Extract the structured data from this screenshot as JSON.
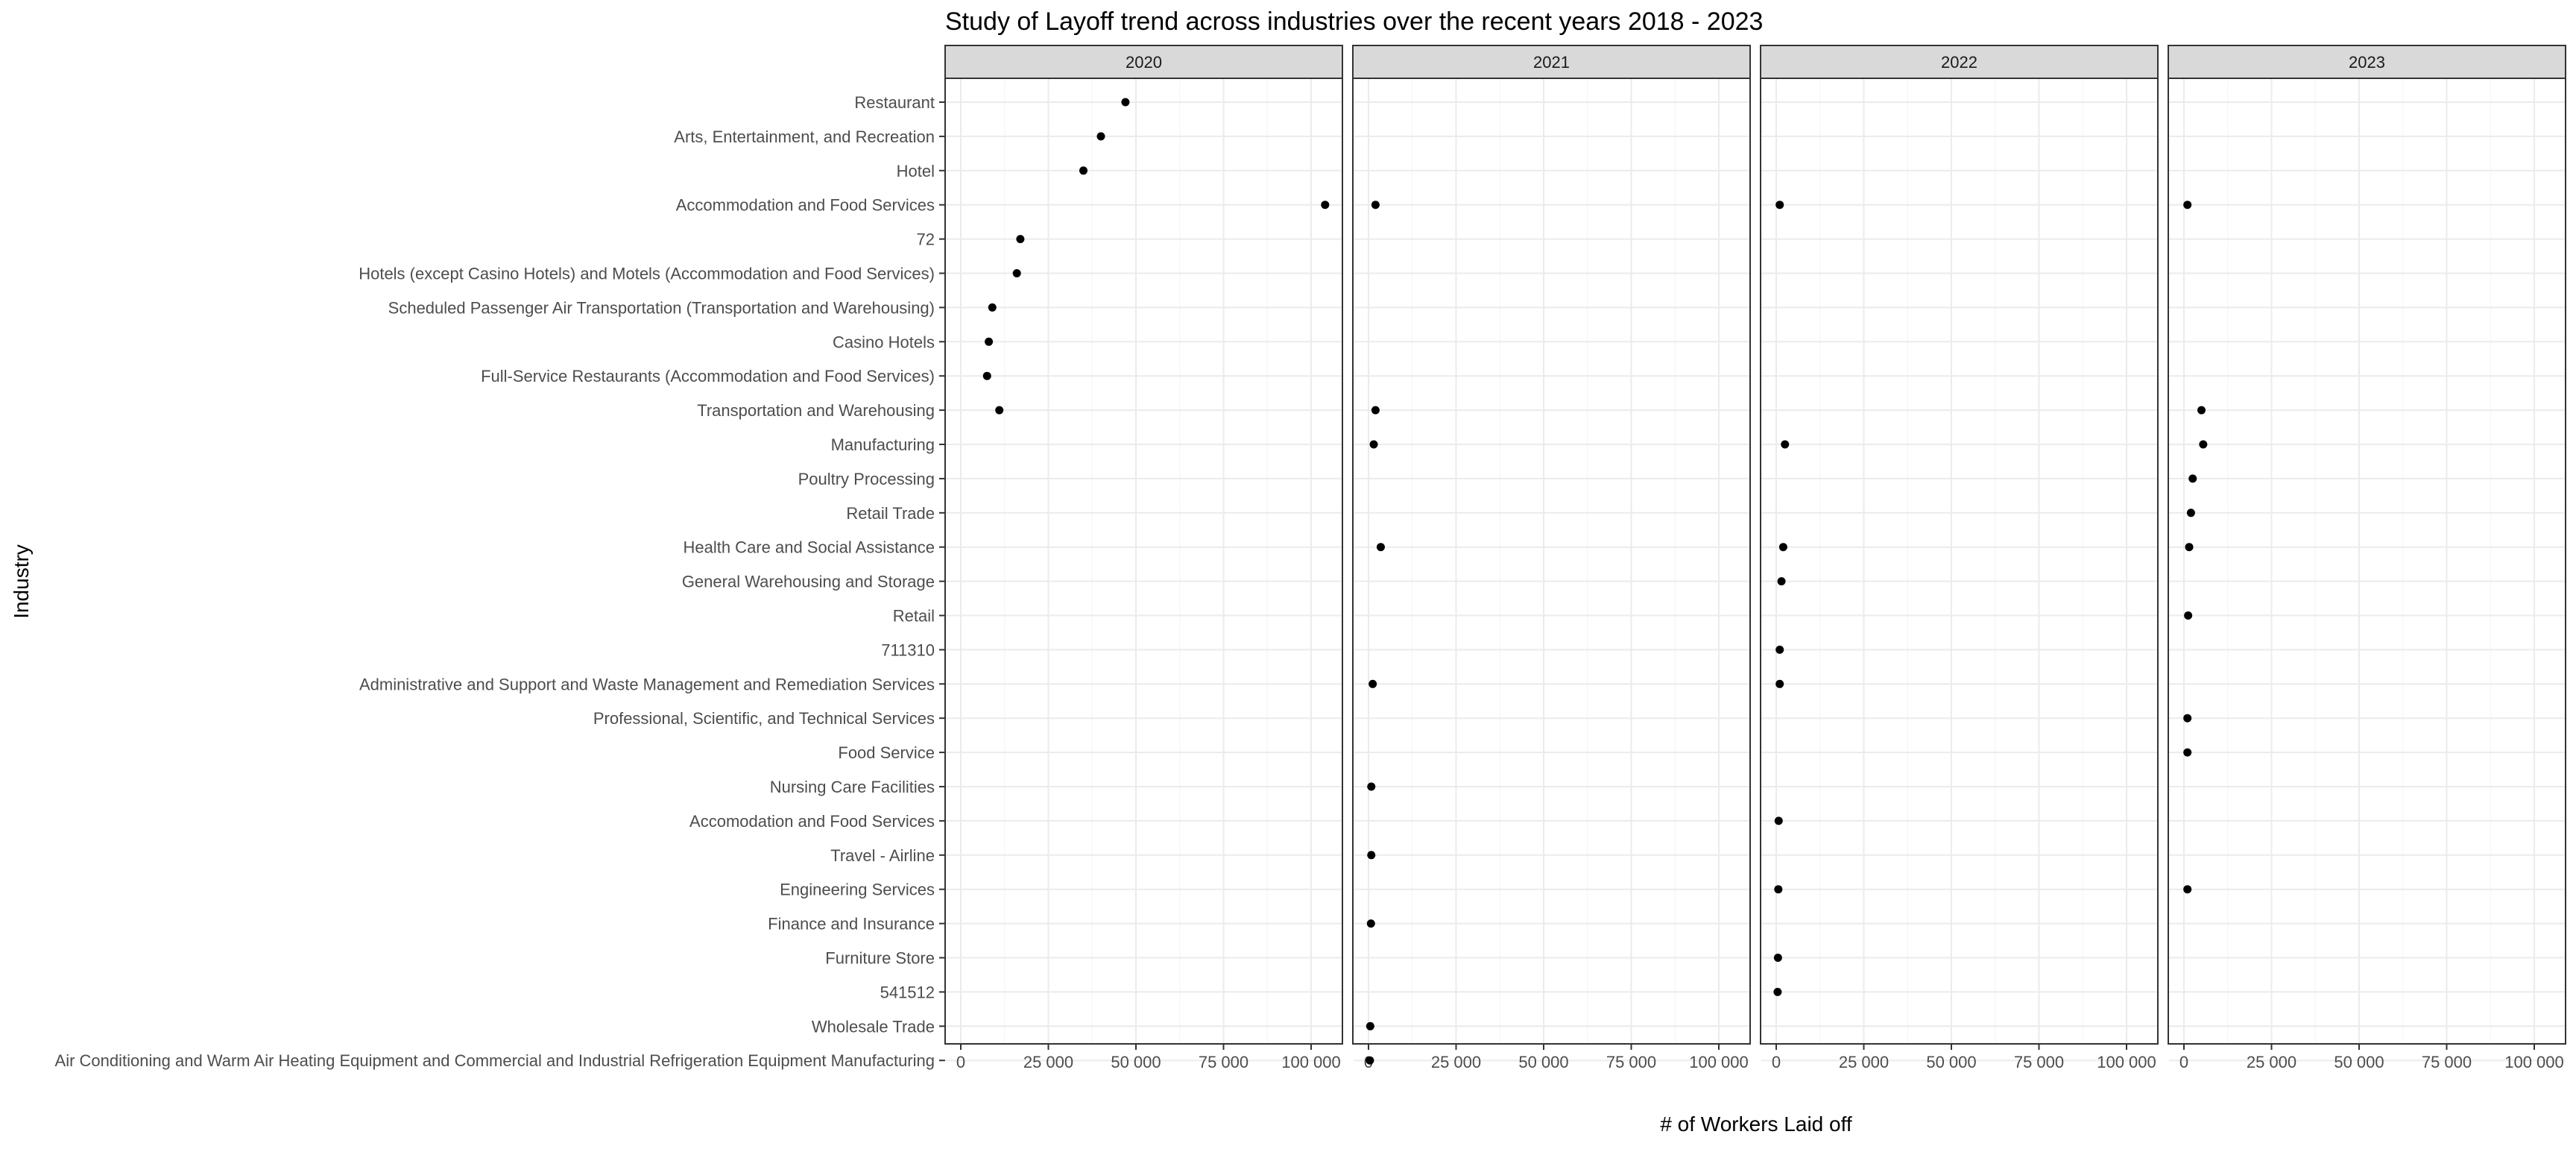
{
  "chart_data": {
    "type": "scatter",
    "title": "Study of Layoff trend across industries over the recent years 2018 - 2023",
    "xlabel": "# of Workers Laid off",
    "ylabel": "Industry",
    "xlim": [
      -4000,
      109000
    ],
    "x_ticks": [
      0,
      25000,
      50000,
      75000,
      100000
    ],
    "x_tick_labels": [
      "0",
      "25 000",
      "50 000",
      "75 000",
      "100 000"
    ],
    "facets": [
      "2020",
      "2021",
      "2022",
      "2023"
    ],
    "categories": [
      "Restaurant",
      "Arts, Entertainment, and Recreation",
      "Hotel",
      "Accommodation and Food Services",
      "72",
      "Hotels (except Casino Hotels) and Motels (Accommodation and Food Services)",
      "Scheduled Passenger Air Transportation (Transportation and Warehousing)",
      "Casino Hotels",
      "Full-Service Restaurants (Accommodation and Food Services)",
      "Transportation and Warehousing",
      "Manufacturing",
      "Poultry Processing",
      "Retail Trade",
      "Health Care and Social Assistance",
      "General Warehousing and Storage",
      "Retail",
      "711310",
      "Administrative and Support and Waste Management and Remediation Services",
      "Professional, Scientific, and Technical Services",
      "Food Service",
      "Nursing Care Facilities",
      "Accomodation and Food Services",
      "Travel - Airline",
      "Engineering Services",
      "Finance and Insurance",
      "Furniture Store",
      "541512",
      "Wholesale Trade",
      "Air Conditioning and Warm Air Heating Equipment and Commercial and Industrial Refrigeration Equipment Manufacturing"
    ],
    "points": [
      {
        "facet": "2020",
        "industry": "Restaurant",
        "value": 47000
      },
      {
        "facet": "2020",
        "industry": "Arts, Entertainment, and Recreation",
        "value": 40000
      },
      {
        "facet": "2020",
        "industry": "Hotel",
        "value": 35000
      },
      {
        "facet": "2020",
        "industry": "Accommodation and Food Services",
        "value": 104000
      },
      {
        "facet": "2020",
        "industry": "72",
        "value": 17000
      },
      {
        "facet": "2020",
        "industry": "Hotels (except Casino Hotels) and Motels (Accommodation and Food Services)",
        "value": 16000
      },
      {
        "facet": "2020",
        "industry": "Scheduled Passenger Air Transportation (Transportation and Warehousing)",
        "value": 9000
      },
      {
        "facet": "2020",
        "industry": "Casino Hotels",
        "value": 8000
      },
      {
        "facet": "2020",
        "industry": "Full-Service Restaurants (Accommodation and Food Services)",
        "value": 7500
      },
      {
        "facet": "2020",
        "industry": "Transportation and Warehousing",
        "value": 11000
      },
      {
        "facet": "2021",
        "industry": "Accommodation and Food Services",
        "value": 2000
      },
      {
        "facet": "2021",
        "industry": "Transportation and Warehousing",
        "value": 2000
      },
      {
        "facet": "2021",
        "industry": "Manufacturing",
        "value": 1500
      },
      {
        "facet": "2021",
        "industry": "Health Care and Social Assistance",
        "value": 3500
      },
      {
        "facet": "2021",
        "industry": "Administrative and Support and Waste Management and Remediation Services",
        "value": 1200
      },
      {
        "facet": "2021",
        "industry": "Nursing Care Facilities",
        "value": 800
      },
      {
        "facet": "2021",
        "industry": "Travel - Airline",
        "value": 800
      },
      {
        "facet": "2021",
        "industry": "Finance and Insurance",
        "value": 700
      },
      {
        "facet": "2021",
        "industry": "Wholesale Trade",
        "value": 500
      },
      {
        "facet": "2021",
        "industry": "Air Conditioning and Warm Air Heating Equipment and Commercial and Industrial Refrigeration Equipment Manufacturing",
        "value": 400
      },
      {
        "facet": "2022",
        "industry": "Accommodation and Food Services",
        "value": 1000
      },
      {
        "facet": "2022",
        "industry": "Manufacturing",
        "value": 2500
      },
      {
        "facet": "2022",
        "industry": "Health Care and Social Assistance",
        "value": 2000
      },
      {
        "facet": "2022",
        "industry": "General Warehousing and Storage",
        "value": 1500
      },
      {
        "facet": "2022",
        "industry": "711310",
        "value": 1000
      },
      {
        "facet": "2022",
        "industry": "Administrative and Support and Waste Management and Remediation Services",
        "value": 1000
      },
      {
        "facet": "2022",
        "industry": "Accomodation and Food Services",
        "value": 700
      },
      {
        "facet": "2022",
        "industry": "Engineering Services",
        "value": 600
      },
      {
        "facet": "2022",
        "industry": "Furniture Store",
        "value": 500
      },
      {
        "facet": "2022",
        "industry": "541512",
        "value": 400
      },
      {
        "facet": "2023",
        "industry": "Accommodation and Food Services",
        "value": 1000
      },
      {
        "facet": "2023",
        "industry": "Transportation and Warehousing",
        "value": 5000
      },
      {
        "facet": "2023",
        "industry": "Manufacturing",
        "value": 5500
      },
      {
        "facet": "2023",
        "industry": "Poultry Processing",
        "value": 2500
      },
      {
        "facet": "2023",
        "industry": "Retail Trade",
        "value": 2000
      },
      {
        "facet": "2023",
        "industry": "Health Care and Social Assistance",
        "value": 1500
      },
      {
        "facet": "2023",
        "industry": "Retail",
        "value": 1200
      },
      {
        "facet": "2023",
        "industry": "Professional, Scientific, and Technical Services",
        "value": 1000
      },
      {
        "facet": "2023",
        "industry": "Food Service",
        "value": 1000
      },
      {
        "facet": "2023",
        "industry": "Engineering Services",
        "value": 1000
      }
    ]
  }
}
